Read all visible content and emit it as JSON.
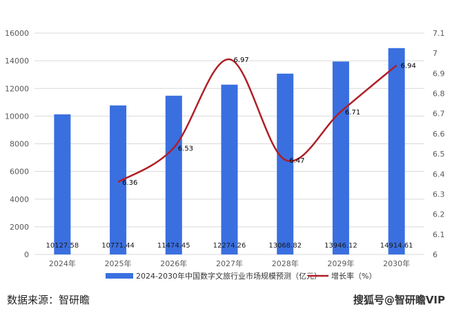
{
  "chart_data": {
    "type": "bar+line",
    "categories": [
      "2024年",
      "2025年",
      "2026年",
      "2027年",
      "2028年",
      "2029年",
      "2030年"
    ],
    "series": [
      {
        "name": "2024-2030年中国数字文旅行业市场规模预测（亿元）",
        "type": "bar",
        "axis": "left",
        "color": "#3a6fe0",
        "values": [
          10127.58,
          10771.44,
          11474.45,
          12274.26,
          13068.82,
          13946.12,
          14914.61
        ],
        "labels": [
          "10127.58",
          "10771.44",
          "11474.45",
          "12274.26",
          "13068.82",
          "13946.12",
          "14914.61"
        ]
      },
      {
        "name": "增长率（%）",
        "type": "line",
        "axis": "right",
        "color": "#b01e26",
        "values": [
          null,
          6.36,
          6.53,
          6.97,
          6.47,
          6.71,
          6.94
        ],
        "labels": [
          "",
          "6.36",
          "6.53",
          "6.97",
          "6.47",
          "6.71",
          "6.94"
        ]
      }
    ],
    "y_left": {
      "min": 0,
      "max": 16000,
      "ticks": [
        "0",
        "2000",
        "4000",
        "6000",
        "8000",
        "10000",
        "12000",
        "14000",
        "16000"
      ]
    },
    "y_right": {
      "min": 6,
      "max": 7.1,
      "ticks": [
        "6",
        "6.1",
        "6.2",
        "6.3",
        "6.4",
        "6.5",
        "6.6",
        "6.7",
        "6.8",
        "6.9",
        "7",
        "7.1"
      ]
    },
    "grid": true,
    "legend_position": "bottom"
  },
  "footer": {
    "source": "数据来源：智研瞻",
    "watermark": "搜狐号@智研瞻VIP"
  }
}
